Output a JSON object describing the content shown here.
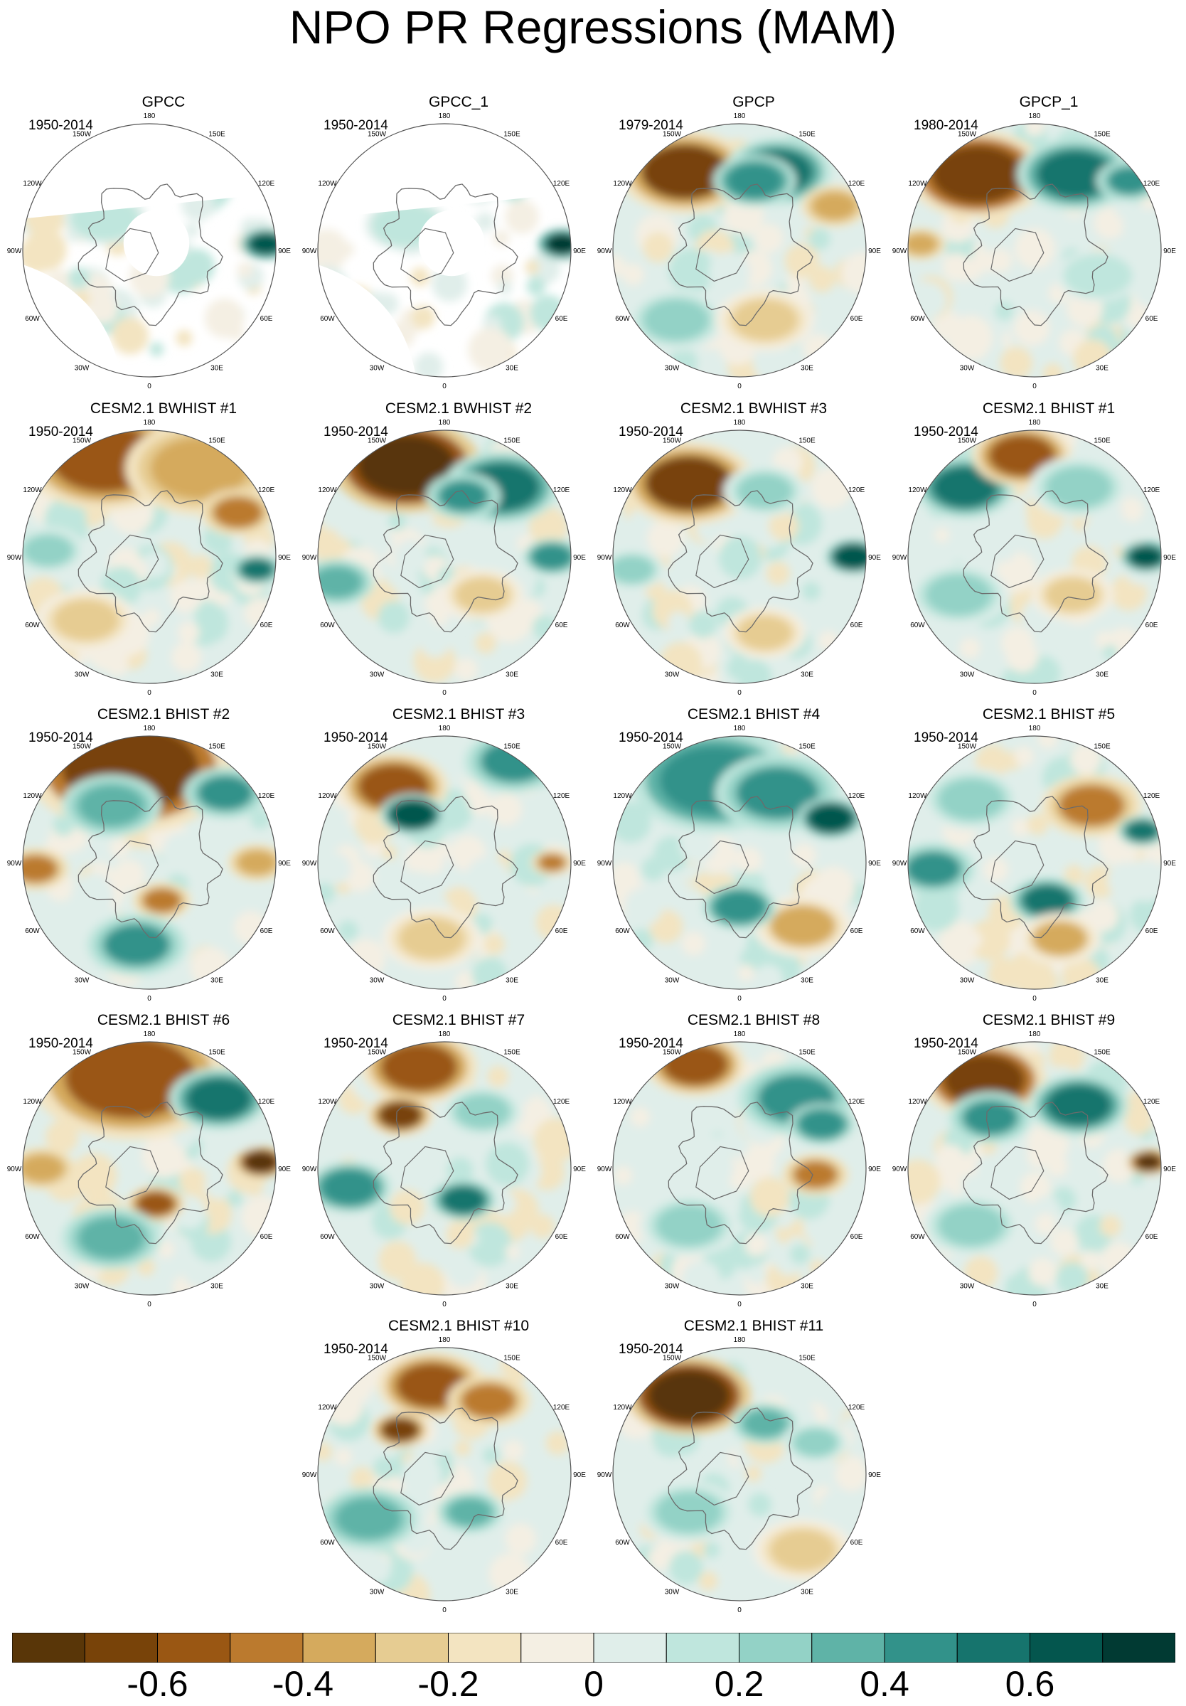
{
  "title": "NPO PR Regressions (MAM)",
  "lon_labels": [
    "180",
    "150E",
    "120E",
    "90E",
    "60E",
    "30E",
    "0",
    "30W",
    "60W",
    "90W",
    "120W",
    "150W"
  ],
  "colors": {
    "land_outline": "#6b6b6b",
    "circle_outline": "#555555",
    "missing": "#ffffff"
  },
  "panels": [
    {
      "id": "gpcc",
      "title": "GPCC",
      "years": "1950-2014",
      "obs_mask": true
    },
    {
      "id": "gpcc1",
      "title": "GPCC_1",
      "years": "1950-2014",
      "obs_mask": true
    },
    {
      "id": "gpcp",
      "title": "GPCP",
      "years": "1979-2014"
    },
    {
      "id": "gpcp1",
      "title": "GPCP_1",
      "years": "1980-2014"
    },
    {
      "id": "bw1",
      "title": "CESM2.1 BWHIST #1",
      "years": "1950-2014"
    },
    {
      "id": "bw2",
      "title": "CESM2.1 BWHIST #2",
      "years": "1950-2014"
    },
    {
      "id": "bw3",
      "title": "CESM2.1 BWHIST #3",
      "years": "1950-2014"
    },
    {
      "id": "bh1",
      "title": "CESM2.1 BHIST #1",
      "years": "1950-2014"
    },
    {
      "id": "bh2",
      "title": "CESM2.1 BHIST #2",
      "years": "1950-2014"
    },
    {
      "id": "bh3",
      "title": "CESM2.1 BHIST #3",
      "years": "1950-2014"
    },
    {
      "id": "bh4",
      "title": "CESM2.1 BHIST #4",
      "years": "1950-2014"
    },
    {
      "id": "bh5",
      "title": "CESM2.1 BHIST #5",
      "years": "1950-2014"
    },
    {
      "id": "bh6",
      "title": "CESM2.1 BHIST #6",
      "years": "1950-2014"
    },
    {
      "id": "bh7",
      "title": "CESM2.1 BHIST #7",
      "years": "1950-2014"
    },
    {
      "id": "bh8",
      "title": "CESM2.1 BHIST #8",
      "years": "1950-2014"
    },
    {
      "id": "bh9",
      "title": "CESM2.1 BHIST #9",
      "years": "1950-2014"
    },
    {
      "id": "bh10",
      "title": "CESM2.1 BHIST #10",
      "years": "1950-2014"
    },
    {
      "id": "bh11",
      "title": "CESM2.1 BHIST #11",
      "years": "1950-2014"
    }
  ],
  "colorbar": {
    "colors": [
      "#593608",
      "#784309",
      "#9a5713",
      "#bb7a2e",
      "#d5aa5d",
      "#e6cc92",
      "#f3e4c1",
      "#f4efe3",
      "#e0eeea",
      "#bfe6dd",
      "#93d2c6",
      "#5fb3a7",
      "#32928a",
      "#16746d",
      "#04564e",
      "#013a33"
    ],
    "labels": [
      "-0.6",
      "-0.4",
      "-0.2",
      "0",
      "0.2",
      "0.4",
      "0.6"
    ]
  }
}
